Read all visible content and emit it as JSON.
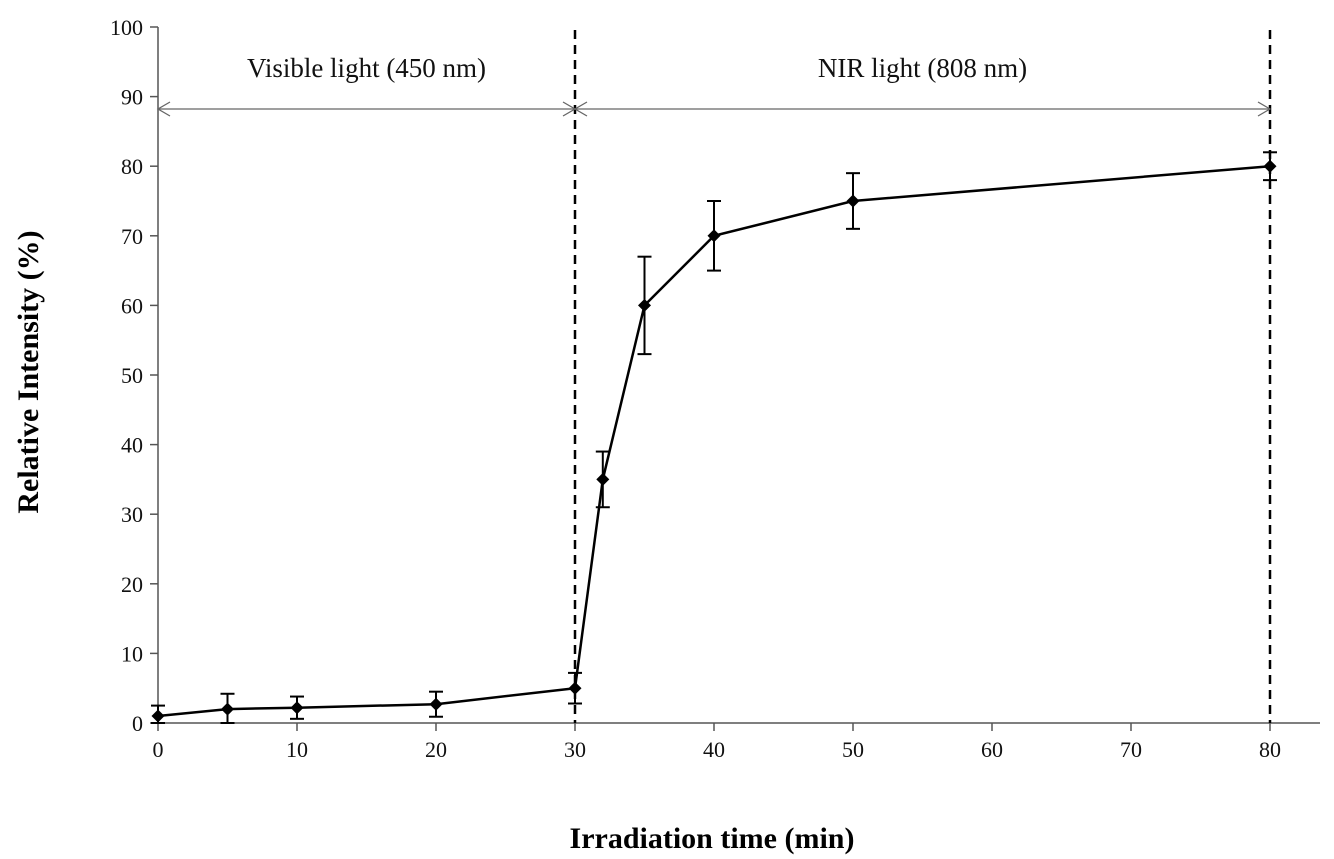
{
  "chart_data": {
    "type": "line",
    "title": "",
    "xlabel": "Irradiation time (min)",
    "ylabel": "Relative Intensity (%)",
    "ylim": [
      0,
      100
    ],
    "y_ticks": [
      0,
      10,
      20,
      30,
      40,
      50,
      60,
      70,
      80,
      90,
      100
    ],
    "x_ticks": [
      0,
      10,
      20,
      30,
      40,
      50,
      60,
      70,
      80
    ],
    "x_tick_labels": [
      "0",
      "10",
      "20",
      "30",
      "40",
      "50",
      "60",
      "70",
      "80"
    ],
    "y_tick_labels": [
      "0",
      "10",
      "20",
      "30",
      "40",
      "50",
      "60",
      "70",
      "80",
      "90",
      "100"
    ],
    "grid": false,
    "legend": "none",
    "series": [
      {
        "x": [
          0,
          5,
          10,
          20,
          30,
          32,
          35,
          40,
          50,
          80
        ],
        "values": [
          1,
          2,
          2.2,
          2.7,
          5,
          35,
          60,
          70,
          75,
          80
        ],
        "error": [
          1.5,
          2.2,
          1.6,
          1.8,
          2.2,
          4,
          7,
          5,
          4,
          2
        ]
      }
    ],
    "regions": [
      {
        "label": "Visible light (450 nm)",
        "x_start": 0,
        "x_end": 30
      },
      {
        "label": "NIR light (808 nm)",
        "x_start": 30,
        "x_end": 80
      }
    ],
    "boundary_lines_x": [
      30,
      80
    ],
    "line_color": "#000000",
    "marker": "diamond"
  }
}
